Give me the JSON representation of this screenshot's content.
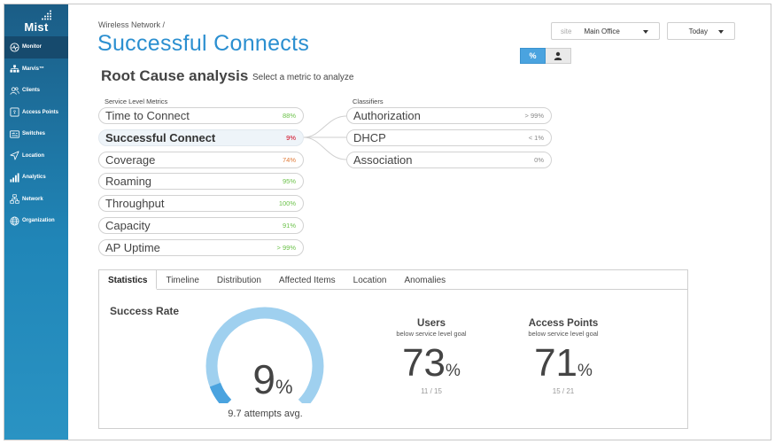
{
  "app": {
    "logo_text": "Mist"
  },
  "sidebar": {
    "items": [
      {
        "label": "Monitor",
        "icon": "monitor-icon",
        "active": true
      },
      {
        "label": "Marvis™",
        "icon": "marvis-icon"
      },
      {
        "label": "Clients",
        "icon": "clients-icon"
      },
      {
        "label": "Access Points",
        "icon": "access-points-icon"
      },
      {
        "label": "Switches",
        "icon": "switches-icon"
      },
      {
        "label": "Location",
        "icon": "location-icon"
      },
      {
        "label": "Analytics",
        "icon": "analytics-icon"
      },
      {
        "label": "Network",
        "icon": "network-icon"
      },
      {
        "label": "Organization",
        "icon": "organization-icon"
      }
    ]
  },
  "header": {
    "breadcrumb": "Wireless Network /",
    "title": "Successful Connects",
    "site_label": "site",
    "site_value": "Main Office",
    "date_value": "Today",
    "toggle_percent": "%",
    "toggle_user_icon": "user-icon"
  },
  "rca": {
    "title": "Root Cause analysis",
    "subtitle": "Select a metric to analyze",
    "metrics_header": "Service Level Metrics",
    "classifiers_header": "Classifiers",
    "metrics": [
      {
        "name": "Time to Connect",
        "value": "88%",
        "color": "#6cc24a"
      },
      {
        "name": "Successful Connect",
        "value": "9%",
        "color": "#d0021b",
        "selected": true
      },
      {
        "name": "Coverage",
        "value": "74%",
        "color": "#e07b39"
      },
      {
        "name": "Roaming",
        "value": "95%",
        "color": "#6cc24a"
      },
      {
        "name": "Throughput",
        "value": "100%",
        "color": "#6cc24a"
      },
      {
        "name": "Capacity",
        "value": "91%",
        "color": "#6cc24a"
      },
      {
        "name": "AP Uptime",
        "value": "> 99%",
        "color": "#6cc24a"
      }
    ],
    "classifiers": [
      {
        "name": "Authorization",
        "value": "> 99%"
      },
      {
        "name": "DHCP",
        "value": "< 1%"
      },
      {
        "name": "Association",
        "value": "0%"
      }
    ]
  },
  "panel": {
    "tabs": [
      "Statistics",
      "Timeline",
      "Distribution",
      "Affected Items",
      "Location",
      "Anomalies"
    ],
    "active_tab": 0,
    "success_rate_title": "Success Rate",
    "gauge_fraction": 0.09,
    "gauge_value": "9",
    "gauge_unit": "%",
    "gauge_sub": "9.7 attempts avg.",
    "users": {
      "title": "Users",
      "sub": "below service level goal",
      "value": "73",
      "unit": "%",
      "fraction": "11 / 15"
    },
    "aps": {
      "title": "Access Points",
      "sub": "below service level goal",
      "value": "71",
      "unit": "%",
      "fraction": "15 / 21"
    }
  },
  "colors": {
    "accent": "#2b8fd0",
    "gauge_track": "#9fd0ef",
    "gauge_fill": "#4aa3df"
  }
}
